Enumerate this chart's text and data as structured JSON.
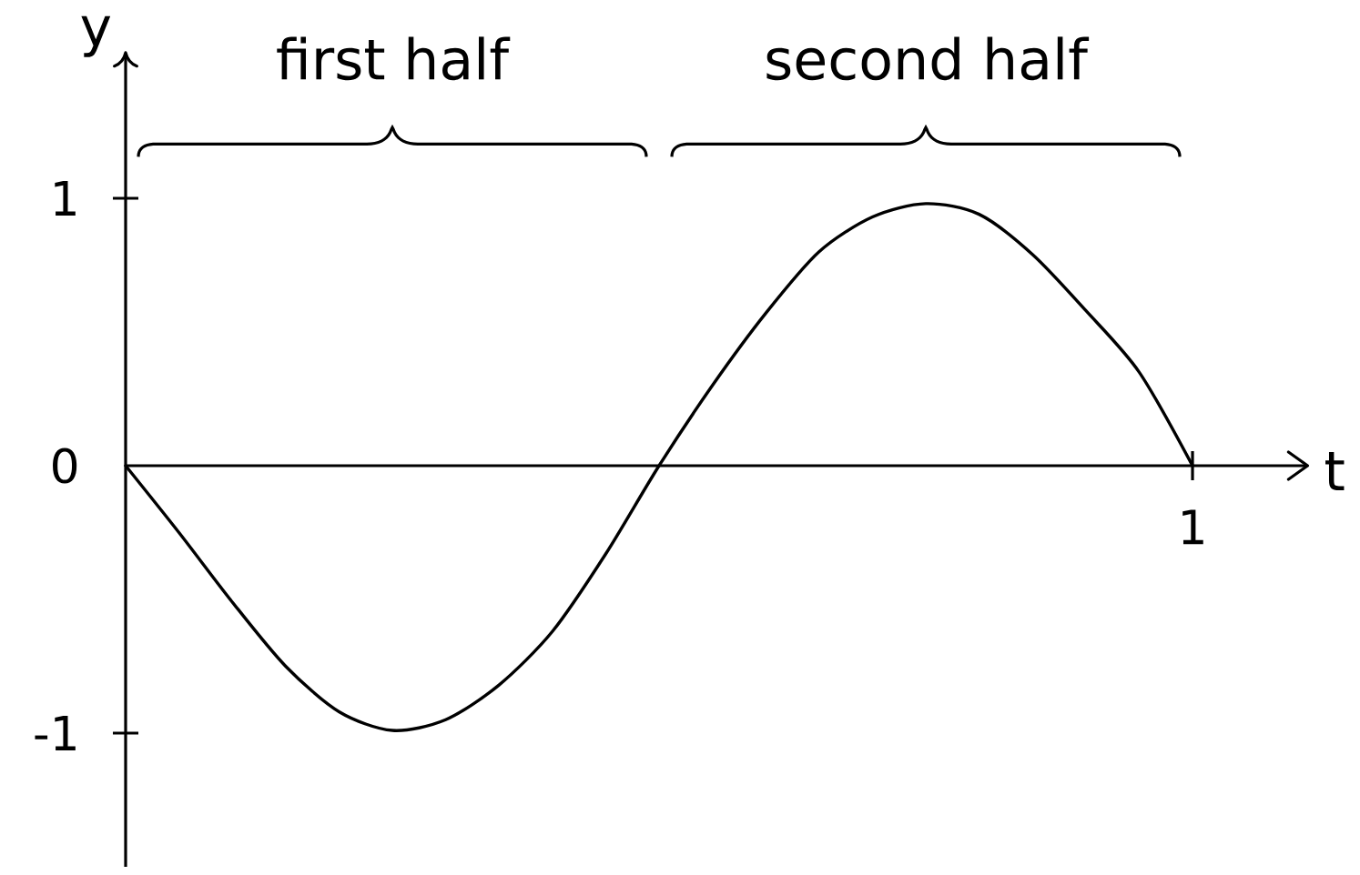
{
  "chart_data": {
    "type": "line",
    "xlabel": "t",
    "ylabel": "y",
    "categories": [
      null,
      null,
      null,
      null,
      null,
      null,
      null,
      null,
      null,
      null,
      null,
      null,
      null,
      null,
      null,
      null,
      null,
      null,
      null,
      null,
      "1"
    ],
    "series": [
      {
        "color": "#000000",
        "values": [
          0,
          -0.25,
          -0.51,
          -0.75,
          -0.92,
          -0.99,
          -0.95,
          -0.82,
          -0.62,
          -0.33,
          0,
          0.3,
          0.57,
          0.8,
          0.93,
          0.98,
          0.94,
          0.79,
          0.58,
          0.35,
          0
        ]
      }
    ],
    "ylim": [
      -1.5,
      1.55
    ],
    "yticks": [
      -1,
      0,
      1
    ],
    "annotations": [
      "first half",
      "second half"
    ],
    "marker": "none",
    "line_style": "solid"
  }
}
